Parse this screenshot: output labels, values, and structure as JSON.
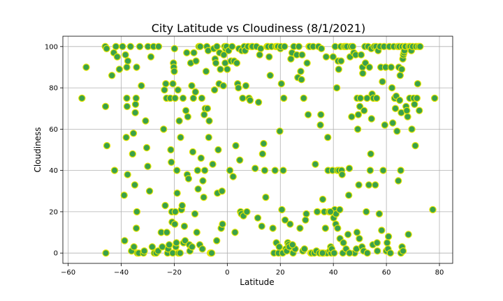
{
  "chart_data": {
    "type": "scatter",
    "title": "City Latitude vs Cloudiness (8/1/2021)",
    "xlabel": "Latitude",
    "ylabel": "Cloudiness",
    "xlim": [
      -62,
      85
    ],
    "ylim": [
      -5,
      105
    ],
    "xticks": [
      -60,
      -40,
      -20,
      0,
      20,
      40,
      60,
      80
    ],
    "yticks": [
      0,
      20,
      40,
      60,
      80,
      100
    ],
    "grid": true,
    "marker_fill": "#3aa14a",
    "marker_edge": "#e5e500",
    "points": [
      [
        -54.8,
        75
      ],
      [
        -53.2,
        90
      ],
      [
        -46,
        100
      ],
      [
        -45.5,
        99
      ],
      [
        -45.9,
        71
      ],
      [
        -45.4,
        52
      ],
      [
        -45.8,
        0
      ],
      [
        -43.5,
        86
      ],
      [
        -42.8,
        97
      ],
      [
        -42.5,
        40
      ],
      [
        -41.5,
        95
      ],
      [
        -40.7,
        89
      ],
      [
        -42,
        100
      ],
      [
        -39.5,
        100
      ],
      [
        -38.9,
        28
      ],
      [
        -38.7,
        6
      ],
      [
        -38.4,
        96
      ],
      [
        -37.9,
        75
      ],
      [
        -37.8,
        71
      ],
      [
        -38.1,
        56
      ],
      [
        -37.6,
        38
      ],
      [
        -37.5,
        93
      ],
      [
        -37.9,
        90
      ],
      [
        -36.5,
        100
      ],
      [
        -36.1,
        1
      ],
      [
        -35.7,
        48
      ],
      [
        -35.4,
        58
      ],
      [
        -35.2,
        3
      ],
      [
        -34.9,
        33
      ],
      [
        -34.7,
        68
      ],
      [
        -34.6,
        72
      ],
      [
        -34.4,
        75
      ],
      [
        -34.3,
        12
      ],
      [
        -34.1,
        20
      ],
      [
        -34.2,
        90
      ],
      [
        -33.9,
        0
      ],
      [
        -33.4,
        0
      ],
      [
        -33.0,
        100
      ],
      [
        -32.4,
        81
      ],
      [
        -31.6,
        0
      ],
      [
        -31.3,
        1
      ],
      [
        -30.8,
        64
      ],
      [
        -30.4,
        51
      ],
      [
        -30.0,
        42
      ],
      [
        -29.9,
        100
      ],
      [
        -29.3,
        30
      ],
      [
        -28.8,
        95
      ],
      [
        -28.3,
        3
      ],
      [
        -27.8,
        100
      ],
      [
        -27.5,
        0
      ],
      [
        -26.8,
        0
      ],
      [
        -26.1,
        1
      ],
      [
        -25.9,
        100
      ],
      [
        -24.9,
        10
      ],
      [
        -24.5,
        3
      ],
      [
        -24.0,
        60
      ],
      [
        -23.7,
        79
      ],
      [
        -23.4,
        23
      ],
      [
        -23.2,
        82
      ],
      [
        -22.9,
        75
      ],
      [
        -22.8,
        10
      ],
      [
        -22.5,
        0
      ],
      [
        -22.3,
        2
      ],
      [
        -21.9,
        4
      ],
      [
        -21.5,
        75
      ],
      [
        -21.3,
        50
      ],
      [
        -21.1,
        44
      ],
      [
        -20.9,
        20
      ],
      [
        -20.8,
        15
      ],
      [
        -20.6,
        0
      ],
      [
        -20.5,
        82
      ],
      [
        -20.3,
        92
      ],
      [
        -20.2,
        90
      ],
      [
        -20.0,
        88
      ],
      [
        -19.9,
        99
      ],
      [
        -19.8,
        14
      ],
      [
        -19.7,
        75
      ],
      [
        -19.6,
        20
      ],
      [
        -19.4,
        3
      ],
      [
        -19.2,
        5
      ],
      [
        -19.0,
        40
      ],
      [
        -18.9,
        29
      ],
      [
        -18.6,
        79
      ],
      [
        -18.4,
        0
      ],
      [
        -18.1,
        64
      ],
      [
        -17.8,
        0
      ],
      [
        -17.6,
        56
      ],
      [
        -17.3,
        21
      ],
      [
        -17.0,
        23
      ],
      [
        -16.7,
        75
      ],
      [
        -16.5,
        5
      ],
      [
        -16.2,
        13
      ],
      [
        -15.9,
        6
      ],
      [
        -15.6,
        69
      ],
      [
        -15.3,
        97
      ],
      [
        -15.1,
        38
      ],
      [
        -14.9,
        66
      ],
      [
        -14.6,
        36
      ],
      [
        -14.3,
        4
      ],
      [
        -14.1,
        1
      ],
      [
        -13.8,
        92
      ],
      [
        -13.4,
        81
      ],
      [
        -13.3,
        3
      ],
      [
        -13.0,
        49
      ],
      [
        -12.8,
        75
      ],
      [
        -12.6,
        97
      ],
      [
        -12.2,
        19
      ],
      [
        -12.0,
        78
      ],
      [
        -11.8,
        93
      ],
      [
        -11.5,
        10
      ],
      [
        -11.2,
        40
      ],
      [
        -11.0,
        31
      ],
      [
        -10.7,
        100
      ],
      [
        -10.4,
        4
      ],
      [
        -10.2,
        100
      ],
      [
        -9.9,
        46
      ],
      [
        -9.6,
        75
      ],
      [
        -9.4,
        2
      ],
      [
        -9.2,
        35
      ],
      [
        -8.9,
        27
      ],
      [
        -8.7,
        67
      ],
      [
        -8.5,
        40
      ],
      [
        -8.3,
        70
      ],
      [
        -8.0,
        88
      ],
      [
        -7.7,
        100
      ],
      [
        -7.5,
        70
      ],
      [
        -7.2,
        98
      ],
      [
        -7.0,
        56
      ],
      [
        -6.8,
        64
      ],
      [
        -6.4,
        0
      ],
      [
        -6.2,
        0
      ],
      [
        -5.9,
        0
      ],
      [
        -5.5,
        43
      ],
      [
        -5.1,
        99
      ],
      [
        -4.8,
        79
      ],
      [
        -4.6,
        94
      ],
      [
        -4.3,
        92
      ],
      [
        -4.0,
        6
      ],
      [
        -3.9,
        100
      ],
      [
        -3.7,
        29
      ],
      [
        -3.4,
        50
      ],
      [
        -3.1,
        82
      ],
      [
        -2.9,
        97
      ],
      [
        -2.6,
        89
      ],
      [
        -2.3,
        12
      ],
      [
        -2.0,
        30
      ],
      [
        -1.8,
        14
      ],
      [
        -1.5,
        81
      ],
      [
        -1.3,
        96
      ],
      [
        -1.0,
        100
      ],
      [
        -0.8,
        92
      ],
      [
        -0.6,
        99
      ],
      [
        -0.3,
        100
      ],
      [
        0,
        89
      ],
      [
        0.5,
        98
      ],
      [
        1.0,
        40
      ],
      [
        1.4,
        93
      ],
      [
        1.8,
        100
      ],
      [
        2.2,
        37
      ],
      [
        2.6,
        93
      ],
      [
        2.9,
        10
      ],
      [
        3.2,
        52
      ],
      [
        3.6,
        92
      ],
      [
        3.9,
        82
      ],
      [
        4.2,
        80
      ],
      [
        4.4,
        99
      ],
      [
        4.7,
        45
      ],
      [
        5.0,
        20
      ],
      [
        5.3,
        19
      ],
      [
        5.5,
        98
      ],
      [
        5.8,
        75
      ],
      [
        6.1,
        18
      ],
      [
        6.4,
        100
      ],
      [
        6.7,
        98
      ],
      [
        7.0,
        81
      ],
      [
        7.4,
        20
      ],
      [
        7.8,
        100
      ],
      [
        8.2,
        75
      ],
      [
        8.6,
        74
      ],
      [
        9.1,
        100
      ],
      [
        9.5,
        100
      ],
      [
        10.5,
        41
      ],
      [
        11.0,
        100
      ],
      [
        11.5,
        17
      ],
      [
        11.8,
        73
      ],
      [
        12.2,
        96
      ],
      [
        12.6,
        99
      ],
      [
        13.0,
        13
      ],
      [
        13.3,
        48
      ],
      [
        13.7,
        53
      ],
      [
        14.1,
        40
      ],
      [
        14.5,
        27
      ],
      [
        15.0,
        100
      ],
      [
        15.4,
        100
      ],
      [
        15.8,
        95
      ],
      [
        16.2,
        86
      ],
      [
        16.7,
        100
      ],
      [
        17.2,
        12
      ],
      [
        17.6,
        0
      ],
      [
        18.0,
        40
      ],
      [
        18.3,
        100
      ],
      [
        18.5,
        5
      ],
      [
        18.8,
        100
      ],
      [
        19.1,
        100
      ],
      [
        19.3,
        0
      ],
      [
        19.6,
        3
      ],
      [
        19.8,
        59
      ],
      [
        20.0,
        99
      ],
      [
        20.2,
        100
      ],
      [
        20.4,
        82
      ],
      [
        20.6,
        21
      ],
      [
        20.9,
        0
      ],
      [
        21.1,
        40
      ],
      [
        21.3,
        75
      ],
      [
        21.6,
        100
      ],
      [
        21.8,
        16
      ],
      [
        22.1,
        2
      ],
      [
        22.4,
        1
      ],
      [
        22.8,
        5
      ],
      [
        23.1,
        4
      ],
      [
        23.4,
        3
      ],
      [
        23.7,
        14
      ],
      [
        24.0,
        94
      ],
      [
        24.4,
        97
      ],
      [
        24.8,
        0
      ],
      [
        25.1,
        100
      ],
      [
        25.6,
        2
      ],
      [
        26.2,
        96
      ],
      [
        26.6,
        85
      ],
      [
        27.0,
        100
      ],
      [
        27.4,
        12
      ],
      [
        27.7,
        88
      ],
      [
        28.0,
        84
      ],
      [
        28.2,
        96
      ],
      [
        28.5,
        1
      ],
      [
        28.8,
        75
      ],
      [
        29.1,
        2
      ],
      [
        29.5,
        16
      ],
      [
        29.8,
        19
      ],
      [
        30.1,
        92
      ],
      [
        30.5,
        67
      ],
      [
        30.8,
        100
      ],
      [
        31.1,
        100
      ],
      [
        31.5,
        0
      ],
      [
        31.8,
        0
      ],
      [
        32.4,
        100
      ],
      [
        32.8,
        0
      ],
      [
        33.2,
        43
      ],
      [
        33.6,
        1
      ],
      [
        34.0,
        20
      ],
      [
        34.4,
        100
      ],
      [
        34.8,
        0
      ],
      [
        35.1,
        62
      ],
      [
        35.3,
        67
      ],
      [
        35.5,
        99
      ],
      [
        35.7,
        0
      ],
      [
        36.0,
        26
      ],
      [
        36.3,
        0
      ],
      [
        36.6,
        20
      ],
      [
        37.0,
        12
      ],
      [
        37.3,
        95
      ],
      [
        37.6,
        0
      ],
      [
        37.9,
        56
      ],
      [
        38.0,
        40
      ],
      [
        38.4,
        20
      ],
      [
        38.7,
        1
      ],
      [
        39.0,
        3
      ],
      [
        39.2,
        0
      ],
      [
        39.4,
        2
      ],
      [
        39.7,
        40
      ],
      [
        39.9,
        95
      ],
      [
        40.1,
        17
      ],
      [
        40.3,
        0
      ],
      [
        40.5,
        21
      ],
      [
        40.7,
        100
      ],
      [
        40.9,
        14
      ],
      [
        41.0,
        19
      ],
      [
        41.3,
        80
      ],
      [
        41.5,
        40
      ],
      [
        41.6,
        12
      ],
      [
        41.8,
        93
      ],
      [
        42.0,
        89
      ],
      [
        42.1,
        40
      ],
      [
        42.4,
        21
      ],
      [
        42.5,
        7
      ],
      [
        42.8,
        100
      ],
      [
        42.9,
        93
      ],
      [
        43.1,
        40
      ],
      [
        43.3,
        38
      ],
      [
        43.6,
        0
      ],
      [
        43.8,
        5
      ],
      [
        44.0,
        100
      ],
      [
        44.5,
        100
      ],
      [
        44.8,
        2
      ],
      [
        45.1,
        100
      ],
      [
        45.5,
        9
      ],
      [
        45.8,
        28
      ],
      [
        46.0,
        41
      ],
      [
        46.3,
        95
      ],
      [
        46.6,
        100
      ],
      [
        46.9,
        66
      ],
      [
        47.3,
        100
      ],
      [
        47.7,
        97
      ],
      [
        48.0,
        0
      ],
      [
        48.4,
        96
      ],
      [
        48.7,
        2
      ],
      [
        48.9,
        10
      ],
      [
        49.0,
        75
      ],
      [
        49.2,
        60
      ],
      [
        49.4,
        67
      ],
      [
        49.6,
        33
      ],
      [
        49.8,
        7
      ],
      [
        50.0,
        71
      ],
      [
        50.2,
        75
      ],
      [
        50.5,
        96
      ],
      [
        50.8,
        3
      ],
      [
        51.0,
        90
      ],
      [
        51.1,
        87
      ],
      [
        51.4,
        1
      ],
      [
        51.6,
        69
      ],
      [
        51.9,
        100
      ],
      [
        52.1,
        92
      ],
      [
        52.4,
        20
      ],
      [
        52.7,
        75
      ],
      [
        52.8,
        0
      ],
      [
        53.1,
        100
      ],
      [
        53.4,
        33
      ],
      [
        53.6,
        90
      ],
      [
        53.9,
        40
      ],
      [
        54.1,
        48
      ],
      [
        54.3,
        99
      ],
      [
        54.4,
        65
      ],
      [
        54.6,
        77
      ],
      [
        54.9,
        4
      ],
      [
        55.1,
        75
      ],
      [
        55.4,
        100
      ],
      [
        55.8,
        33
      ],
      [
        56.1,
        100
      ],
      [
        56.3,
        75
      ],
      [
        56.6,
        1
      ],
      [
        56.9,
        98
      ],
      [
        57.3,
        19
      ],
      [
        57.6,
        100
      ],
      [
        57.9,
        90
      ],
      [
        58.2,
        11
      ],
      [
        58.5,
        83
      ],
      [
        58.8,
        40
      ],
      [
        59.1,
        100
      ],
      [
        59.4,
        62
      ],
      [
        59.7,
        90
      ],
      [
        60.0,
        1
      ],
      [
        60.3,
        5
      ],
      [
        60.6,
        2
      ],
      [
        60.8,
        8
      ],
      [
        61.1,
        100
      ],
      [
        61.5,
        0
      ],
      [
        61.8,
        90
      ],
      [
        62.1,
        80
      ],
      [
        62.4,
        63
      ],
      [
        62.8,
        100
      ],
      [
        63.1,
        75
      ],
      [
        63.4,
        70
      ],
      [
        63.7,
        76
      ],
      [
        64.0,
        59
      ],
      [
        64.3,
        100
      ],
      [
        64.5,
        35
      ],
      [
        64.7,
        90
      ],
      [
        64.9,
        100
      ],
      [
        65.0,
        74
      ],
      [
        65.2,
        86
      ],
      [
        65.4,
        40
      ],
      [
        65.6,
        68
      ],
      [
        65.8,
        89
      ],
      [
        66.0,
        100
      ],
      [
        66.2,
        94
      ],
      [
        66.4,
        96
      ],
      [
        66.6,
        97
      ],
      [
        66.8,
        98
      ],
      [
        67.0,
        100
      ],
      [
        67.2,
        100
      ],
      [
        67.4,
        71
      ],
      [
        67.7,
        69
      ],
      [
        68.0,
        66
      ],
      [
        68.3,
        9
      ],
      [
        68.5,
        100
      ],
      [
        68.8,
        75
      ],
      [
        69.0,
        100
      ],
      [
        69.4,
        98
      ],
      [
        69.6,
        60
      ],
      [
        69.9,
        100
      ],
      [
        70.3,
        75
      ],
      [
        70.6,
        72
      ],
      [
        70.9,
        52
      ],
      [
        71.2,
        100
      ],
      [
        71.5,
        75
      ],
      [
        71.8,
        82
      ],
      [
        72.1,
        100
      ],
      [
        72.4,
        69
      ],
      [
        72.7,
        100
      ],
      [
        77.5,
        21
      ],
      [
        78.2,
        75
      ],
      [
        65.5,
        0
      ],
      [
        65.9,
        3
      ],
      [
        66.3,
        1
      ],
      [
        56.5,
        5
      ],
      [
        35.9,
        0
      ],
      [
        46.1,
        0
      ],
      [
        33.9,
        20
      ],
      [
        38.9,
        20
      ],
      [
        24.6,
        4
      ]
    ]
  }
}
